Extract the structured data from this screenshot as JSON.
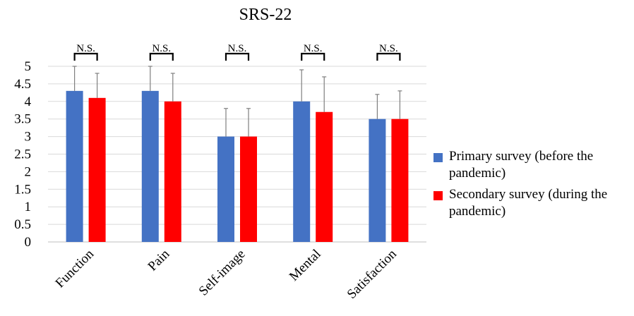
{
  "chart_data": {
    "type": "bar",
    "title": "SRS-22",
    "categories": [
      "Function",
      "Pain",
      "Self-image",
      "Mental",
      "Satisfaction"
    ],
    "series": [
      {
        "name": "Primary survey (before the pandemic)",
        "color": "#4472c4",
        "values": [
          4.3,
          4.3,
          3.0,
          4.0,
          3.5
        ],
        "error": [
          0.7,
          0.7,
          0.8,
          0.9,
          0.7
        ]
      },
      {
        "name": "Secondary survey (during the pandemic)",
        "color": "#ff0000",
        "values": [
          4.1,
          4.0,
          3.0,
          3.7,
          3.5
        ],
        "error": [
          0.7,
          0.8,
          0.8,
          1.0,
          0.8
        ]
      }
    ],
    "ylim": [
      0,
      5
    ],
    "yticks": [
      "0",
      "0.5",
      "1",
      "1.5",
      "2",
      "2.5",
      "3",
      "3.5",
      "4",
      "4.5",
      "5"
    ],
    "significance": [
      "N.S.",
      "N.S.",
      "N.S.",
      "N.S.",
      "N.S."
    ],
    "grid": true,
    "legend_position": "right"
  },
  "legend": [
    {
      "label": "Primary survey (before the pandemic)",
      "color": "#4472c4"
    },
    {
      "label": "Secondary survey (during the pandemic)",
      "color": "#ff0000"
    }
  ]
}
